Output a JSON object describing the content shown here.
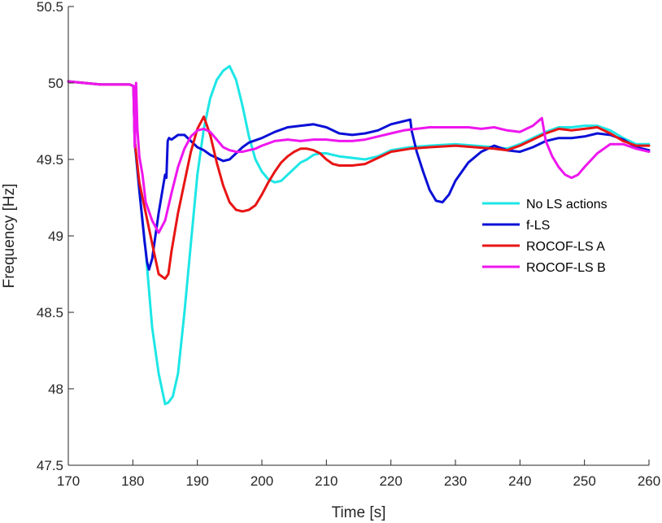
{
  "chart_data": {
    "type": "line",
    "title": "",
    "xlabel": "Time [s]",
    "ylabel": "Frequency [Hz]",
    "xlim": [
      170,
      260
    ],
    "ylim": [
      47.5,
      50.5
    ],
    "xticks": [
      170,
      180,
      190,
      200,
      210,
      220,
      230,
      240,
      250,
      260
    ],
    "xtick_labels": [
      "170",
      "180",
      "190",
      "200",
      "210",
      "220",
      "230",
      "240",
      "250",
      "260"
    ],
    "yticks": [
      47.5,
      48,
      48.5,
      49,
      49.5,
      50,
      50.5
    ],
    "ytick_labels": [
      "47.5",
      "48",
      "48.5",
      "49",
      "49.5",
      "50",
      "50.5"
    ],
    "grid": false,
    "legend_position": "right-middle",
    "series": [
      {
        "name": "No LS actions",
        "color": "#1de6e6",
        "points": [
          [
            170,
            50.01
          ],
          [
            175,
            49.99
          ],
          [
            179.5,
            49.99
          ],
          [
            180.1,
            49.98
          ],
          [
            180.3,
            49.6
          ],
          [
            181,
            49.3
          ],
          [
            182,
            48.9
          ],
          [
            183,
            48.4
          ],
          [
            184,
            48.1
          ],
          [
            185,
            47.9
          ],
          [
            185.5,
            47.91
          ],
          [
            186.2,
            47.95
          ],
          [
            187,
            48.1
          ],
          [
            188,
            48.5
          ],
          [
            189,
            48.95
          ],
          [
            190,
            49.4
          ],
          [
            191,
            49.7
          ],
          [
            192,
            49.9
          ],
          [
            193,
            50.02
          ],
          [
            194,
            50.08
          ],
          [
            195,
            50.11
          ],
          [
            196,
            50.02
          ],
          [
            197,
            49.85
          ],
          [
            198,
            49.65
          ],
          [
            199,
            49.5
          ],
          [
            200,
            49.42
          ],
          [
            201,
            49.37
          ],
          [
            202,
            49.35
          ],
          [
            203,
            49.36
          ],
          [
            204,
            49.4
          ],
          [
            205,
            49.44
          ],
          [
            206,
            49.48
          ],
          [
            207,
            49.5
          ],
          [
            208,
            49.53
          ],
          [
            209,
            49.54
          ],
          [
            210,
            49.54
          ],
          [
            211,
            49.53
          ],
          [
            212,
            49.52
          ],
          [
            214,
            49.51
          ],
          [
            216,
            49.5
          ],
          [
            218,
            49.52
          ],
          [
            220,
            49.56
          ],
          [
            223,
            49.58
          ],
          [
            226,
            49.59
          ],
          [
            230,
            49.6
          ],
          [
            233,
            49.59
          ],
          [
            236,
            49.58
          ],
          [
            238,
            49.57
          ],
          [
            240,
            49.6
          ],
          [
            242,
            49.64
          ],
          [
            244,
            49.68
          ],
          [
            246,
            49.71
          ],
          [
            248,
            49.71
          ],
          [
            250,
            49.72
          ],
          [
            252,
            49.72
          ],
          [
            254,
            49.69
          ],
          [
            256,
            49.64
          ],
          [
            258,
            49.6
          ],
          [
            260,
            49.6
          ]
        ]
      },
      {
        "name": "f-LS",
        "color": "#0a10d6",
        "points": [
          [
            170,
            50.01
          ],
          [
            175,
            49.99
          ],
          [
            179.5,
            49.99
          ],
          [
            180.1,
            49.98
          ],
          [
            180.3,
            49.62
          ],
          [
            181,
            49.3
          ],
          [
            181.8,
            48.97
          ],
          [
            182.2,
            48.83
          ],
          [
            182.5,
            48.78
          ],
          [
            183,
            48.85
          ],
          [
            183.5,
            49.0
          ],
          [
            184,
            49.15
          ],
          [
            184.6,
            49.3
          ],
          [
            185,
            49.4
          ],
          [
            185.2,
            49.38
          ],
          [
            185.4,
            49.62
          ],
          [
            185.6,
            49.64
          ],
          [
            186,
            49.63
          ],
          [
            187,
            49.66
          ],
          [
            188,
            49.66
          ],
          [
            189,
            49.62
          ],
          [
            190,
            49.58
          ],
          [
            191,
            49.56
          ],
          [
            192,
            49.53
          ],
          [
            193,
            49.51
          ],
          [
            194,
            49.49
          ],
          [
            195,
            49.5
          ],
          [
            196,
            49.54
          ],
          [
            197,
            49.58
          ],
          [
            198,
            49.61
          ],
          [
            200,
            49.64
          ],
          [
            202,
            49.68
          ],
          [
            204,
            49.71
          ],
          [
            206,
            49.72
          ],
          [
            208,
            49.73
          ],
          [
            210,
            49.71
          ],
          [
            212,
            49.67
          ],
          [
            214,
            49.66
          ],
          [
            216,
            49.67
          ],
          [
            218,
            49.69
          ],
          [
            220,
            49.73
          ],
          [
            222,
            49.75
          ],
          [
            223,
            49.76
          ],
          [
            223.2,
            49.69
          ],
          [
            224,
            49.55
          ],
          [
            225,
            49.42
          ],
          [
            226,
            49.3
          ],
          [
            227,
            49.23
          ],
          [
            228,
            49.22
          ],
          [
            229,
            49.27
          ],
          [
            230,
            49.36
          ],
          [
            232,
            49.48
          ],
          [
            234,
            49.55
          ],
          [
            236,
            49.59
          ],
          [
            238,
            49.56
          ],
          [
            240,
            49.55
          ],
          [
            242,
            49.58
          ],
          [
            244,
            49.62
          ],
          [
            246,
            49.64
          ],
          [
            248,
            49.64
          ],
          [
            250,
            49.65
          ],
          [
            252,
            49.67
          ],
          [
            254,
            49.66
          ],
          [
            256,
            49.63
          ],
          [
            258,
            49.58
          ],
          [
            260,
            49.56
          ]
        ]
      },
      {
        "name": "ROCOF-LS A",
        "color": "#e81414",
        "points": [
          [
            170,
            50.01
          ],
          [
            175,
            49.99
          ],
          [
            179.5,
            49.99
          ],
          [
            180.1,
            49.98
          ],
          [
            180.3,
            49.62
          ],
          [
            181,
            49.35
          ],
          [
            182,
            49.15
          ],
          [
            183,
            48.95
          ],
          [
            184,
            48.75
          ],
          [
            185,
            48.72
          ],
          [
            185.5,
            48.75
          ],
          [
            186,
            48.9
          ],
          [
            187,
            49.15
          ],
          [
            188,
            49.35
          ],
          [
            189,
            49.55
          ],
          [
            190,
            49.7
          ],
          [
            191,
            49.78
          ],
          [
            192,
            49.66
          ],
          [
            193,
            49.48
          ],
          [
            194,
            49.33
          ],
          [
            195,
            49.22
          ],
          [
            196,
            49.17
          ],
          [
            197,
            49.16
          ],
          [
            198,
            49.17
          ],
          [
            199,
            49.2
          ],
          [
            200,
            49.27
          ],
          [
            201,
            49.35
          ],
          [
            202,
            49.42
          ],
          [
            203,
            49.48
          ],
          [
            204,
            49.52
          ],
          [
            205,
            49.55
          ],
          [
            206,
            49.57
          ],
          [
            207,
            49.57
          ],
          [
            208,
            49.56
          ],
          [
            209,
            49.54
          ],
          [
            210,
            49.5
          ],
          [
            211,
            49.47
          ],
          [
            212,
            49.46
          ],
          [
            214,
            49.46
          ],
          [
            216,
            49.47
          ],
          [
            218,
            49.51
          ],
          [
            220,
            49.55
          ],
          [
            223,
            49.57
          ],
          [
            226,
            49.58
          ],
          [
            230,
            49.59
          ],
          [
            233,
            49.58
          ],
          [
            236,
            49.57
          ],
          [
            238,
            49.56
          ],
          [
            240,
            49.59
          ],
          [
            242,
            49.63
          ],
          [
            244,
            49.67
          ],
          [
            246,
            49.7
          ],
          [
            248,
            49.69
          ],
          [
            250,
            49.7
          ],
          [
            252,
            49.71
          ],
          [
            254,
            49.67
          ],
          [
            256,
            49.62
          ],
          [
            258,
            49.59
          ],
          [
            260,
            49.59
          ]
        ]
      },
      {
        "name": "ROCOF-LS B",
        "color": "#ee16ee",
        "points": [
          [
            170,
            50.01
          ],
          [
            175,
            49.99
          ],
          [
            179.5,
            49.99
          ],
          [
            180.1,
            49.98
          ],
          [
            180.3,
            49.58
          ],
          [
            180.5,
            50.0
          ],
          [
            180.7,
            49.7
          ],
          [
            181,
            49.52
          ],
          [
            181.5,
            49.4
          ],
          [
            182,
            49.22
          ],
          [
            183,
            49.1
          ],
          [
            184,
            49.02
          ],
          [
            185,
            49.1
          ],
          [
            186,
            49.28
          ],
          [
            187,
            49.45
          ],
          [
            188,
            49.57
          ],
          [
            189,
            49.65
          ],
          [
            190,
            49.69
          ],
          [
            191,
            49.7
          ],
          [
            192,
            49.68
          ],
          [
            193,
            49.63
          ],
          [
            194,
            49.58
          ],
          [
            195,
            49.56
          ],
          [
            196,
            49.55
          ],
          [
            197,
            49.55
          ],
          [
            198,
            49.56
          ],
          [
            199,
            49.57
          ],
          [
            200,
            49.59
          ],
          [
            202,
            49.62
          ],
          [
            204,
            49.63
          ],
          [
            206,
            49.62
          ],
          [
            208,
            49.63
          ],
          [
            210,
            49.63
          ],
          [
            212,
            49.62
          ],
          [
            214,
            49.62
          ],
          [
            216,
            49.63
          ],
          [
            218,
            49.65
          ],
          [
            220,
            49.67
          ],
          [
            222,
            49.69
          ],
          [
            224,
            49.7
          ],
          [
            226,
            49.71
          ],
          [
            228,
            49.71
          ],
          [
            230,
            49.71
          ],
          [
            232,
            49.71
          ],
          [
            234,
            49.7
          ],
          [
            236,
            49.71
          ],
          [
            238,
            49.69
          ],
          [
            240,
            49.68
          ],
          [
            242,
            49.72
          ],
          [
            243.4,
            49.77
          ],
          [
            244,
            49.62
          ],
          [
            245,
            49.52
          ],
          [
            246,
            49.45
          ],
          [
            247,
            49.4
          ],
          [
            248,
            49.38
          ],
          [
            249,
            49.4
          ],
          [
            250,
            49.45
          ],
          [
            252,
            49.54
          ],
          [
            254,
            49.6
          ],
          [
            256,
            49.6
          ],
          [
            258,
            49.57
          ],
          [
            260,
            49.55
          ]
        ]
      }
    ]
  }
}
